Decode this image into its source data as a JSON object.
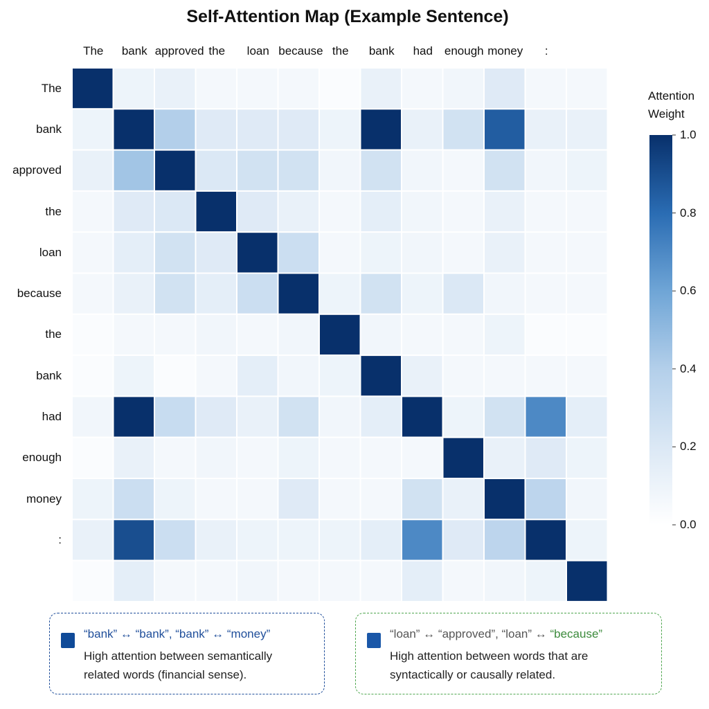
{
  "chart_data": {
    "type": "heatmap",
    "title": "Self-Attention Map (Example Sentence)",
    "x_tokens": [
      "The",
      "bank",
      "approved",
      "the",
      "loan",
      "because",
      "the",
      "bank",
      "had",
      "enough",
      "money",
      ":"
    ],
    "y_tokens": [
      "The",
      "bank",
      "approved",
      "the",
      "loan",
      "because",
      "the",
      "bank",
      "had",
      "enough",
      "money",
      ":",
      ""
    ],
    "values": [
      [
        1.0,
        0.1,
        0.12,
        0.06,
        0.06,
        0.06,
        0.03,
        0.12,
        0.06,
        0.08,
        0.18,
        0.06
      ],
      [
        0.1,
        1.0,
        0.4,
        0.18,
        0.18,
        0.18,
        0.1,
        1.0,
        0.12,
        0.25,
        0.85,
        0.12
      ],
      [
        0.12,
        0.45,
        1.0,
        0.2,
        0.25,
        0.25,
        0.08,
        0.25,
        0.08,
        0.06,
        0.25,
        0.08
      ],
      [
        0.06,
        0.18,
        0.2,
        1.0,
        0.18,
        0.12,
        0.06,
        0.15,
        0.08,
        0.06,
        0.12,
        0.06
      ],
      [
        0.06,
        0.15,
        0.25,
        0.18,
        1.0,
        0.28,
        0.06,
        0.1,
        0.08,
        0.06,
        0.12,
        0.06
      ],
      [
        0.06,
        0.12,
        0.25,
        0.15,
        0.28,
        1.0,
        0.1,
        0.25,
        0.1,
        0.2,
        0.08,
        0.06
      ],
      [
        0.03,
        0.06,
        0.06,
        0.08,
        0.06,
        0.08,
        1.0,
        0.08,
        0.06,
        0.06,
        0.1,
        0.03
      ],
      [
        0.03,
        0.1,
        0.03,
        0.06,
        0.15,
        0.08,
        0.1,
        1.0,
        0.12,
        0.06,
        0.06,
        0.06
      ],
      [
        0.08,
        1.0,
        0.3,
        0.18,
        0.12,
        0.25,
        0.08,
        0.15,
        1.0,
        0.1,
        0.25,
        0.7
      ],
      [
        0.03,
        0.12,
        0.06,
        0.08,
        0.06,
        0.1,
        0.06,
        0.06,
        0.06,
        1.0,
        0.12,
        0.18
      ],
      [
        0.1,
        0.28,
        0.1,
        0.06,
        0.06,
        0.18,
        0.06,
        0.06,
        0.25,
        0.12,
        1.0,
        0.35
      ],
      [
        0.12,
        0.9,
        0.28,
        0.12,
        0.1,
        0.1,
        0.1,
        0.15,
        0.7,
        0.18,
        0.35,
        1.0
      ],
      [
        0.03,
        0.15,
        0.06,
        0.06,
        0.08,
        0.06,
        0.06,
        0.06,
        0.15,
        0.06,
        0.08,
        0.1
      ]
    ],
    "extra_cells": [
      {
        "row": 0,
        "value": 0.06
      },
      {
        "row": 1,
        "value": 0.12
      },
      {
        "row": 2,
        "value": 0.1
      },
      {
        "row": 3,
        "value": 0.06
      },
      {
        "row": 4,
        "value": 0.06
      },
      {
        "row": 5,
        "value": 0.06
      },
      {
        "row": 6,
        "value": 0.03
      },
      {
        "row": 7,
        "value": 0.06
      },
      {
        "row": 8,
        "value": 0.15
      },
      {
        "row": 9,
        "value": 0.1
      },
      {
        "row": 10,
        "value": 0.08
      },
      {
        "row": 11,
        "value": 0.1
      },
      {
        "row": 12,
        "value": 1.0
      }
    ],
    "colorbar": {
      "title_lines": [
        "Attention",
        "Weight"
      ],
      "range": [
        0.0,
        1.0
      ],
      "ticks": [
        "1.0",
        "0.8",
        "0.6",
        "0.4",
        "0.2",
        "0.0"
      ],
      "tick_values": [
        1.0,
        0.8,
        0.6,
        0.4,
        0.2,
        0.0
      ],
      "color_low": "#ffffff",
      "color_high": "#08306b",
      "colormap": "Blues"
    },
    "grid": true
  },
  "notes": [
    {
      "heading_parts": [
        {
          "text": "“bank” ↔ “bank”, “bank” ↔ “money”",
          "color": "#1f4e9a"
        }
      ],
      "body_lines": [
        "High attention between semantically",
        "related words (financial sense)."
      ],
      "border_color": "#1f4e9a",
      "swatch_color": "#0f4a98"
    },
    {
      "heading_parts": [
        {
          "text": "“loan” ↔ “approved”, “loan” ↔ ",
          "color": "#555555"
        },
        {
          "text": "“because”",
          "color": "#3b8a3b"
        }
      ],
      "body_lines": [
        "High attention between words that are",
        "syntactically or causally related."
      ],
      "border_color": "#4ea64e",
      "swatch_color": "#1a57a8"
    }
  ]
}
